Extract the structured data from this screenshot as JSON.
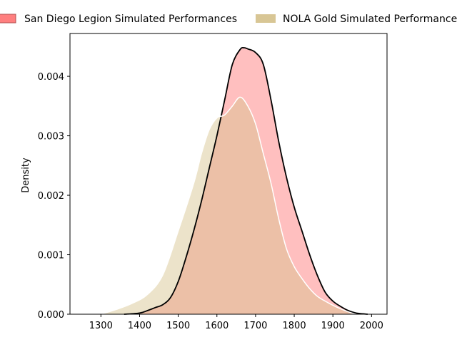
{
  "chart_data": {
    "type": "area",
    "title": "",
    "xlabel": "",
    "ylabel": "Density",
    "xlim": [
      1220,
      2040
    ],
    "ylim": [
      0,
      0.00472
    ],
    "x_ticks": [
      1300,
      1400,
      1500,
      1600,
      1700,
      1800,
      1900,
      2000
    ],
    "y_ticks": [
      0.0,
      0.001,
      0.002,
      0.003,
      0.004
    ],
    "y_tick_labels": [
      "0.000",
      "0.001",
      "0.002",
      "0.003",
      "0.004"
    ],
    "grid": false,
    "legend_position": "top",
    "series": [
      {
        "name": "San Diego Legion Simulated Performances",
        "fill": "#ff7f7f",
        "fill_opacity": 0.5,
        "stroke": "#000000",
        "points": [
          [
            1360,
            0.0
          ],
          [
            1400,
            2e-05
          ],
          [
            1420,
            6e-05
          ],
          [
            1440,
            0.00011
          ],
          [
            1460,
            0.00016
          ],
          [
            1480,
            0.00028
          ],
          [
            1500,
            0.00055
          ],
          [
            1520,
            0.00095
          ],
          [
            1540,
            0.0014
          ],
          [
            1560,
            0.0019
          ],
          [
            1580,
            0.00245
          ],
          [
            1600,
            0.003
          ],
          [
            1620,
            0.0036
          ],
          [
            1640,
            0.0042
          ],
          [
            1660,
            0.00445
          ],
          [
            1670,
            0.00448
          ],
          [
            1680,
            0.00446
          ],
          [
            1700,
            0.0044
          ],
          [
            1720,
            0.0042
          ],
          [
            1740,
            0.0036
          ],
          [
            1760,
            0.0029
          ],
          [
            1780,
            0.0023
          ],
          [
            1800,
            0.0018
          ],
          [
            1820,
            0.0014
          ],
          [
            1840,
            0.001
          ],
          [
            1860,
            0.00065
          ],
          [
            1880,
            0.00037
          ],
          [
            1900,
            0.00022
          ],
          [
            1920,
            0.00013
          ],
          [
            1940,
            6e-05
          ],
          [
            1960,
            2e-05
          ],
          [
            1990,
            0.0
          ]
        ]
      },
      {
        "name": "NOLA Gold Simulated Performances",
        "fill": "#d4c08a",
        "fill_opacity": 0.45,
        "stroke": "#ffffff",
        "points": [
          [
            1300,
            0.0
          ],
          [
            1340,
            8e-05
          ],
          [
            1380,
            0.00018
          ],
          [
            1420,
            0.00033
          ],
          [
            1460,
            0.00066
          ],
          [
            1500,
            0.0014
          ],
          [
            1540,
            0.0022
          ],
          [
            1560,
            0.0027
          ],
          [
            1580,
            0.0031
          ],
          [
            1600,
            0.0033
          ],
          [
            1620,
            0.00335
          ],
          [
            1640,
            0.0035
          ],
          [
            1660,
            0.00365
          ],
          [
            1680,
            0.0035
          ],
          [
            1700,
            0.0032
          ],
          [
            1720,
            0.0027
          ],
          [
            1740,
            0.0022
          ],
          [
            1760,
            0.0016
          ],
          [
            1780,
            0.0011
          ],
          [
            1800,
            0.0008
          ],
          [
            1820,
            0.0006
          ],
          [
            1840,
            0.00043
          ],
          [
            1860,
            0.0003
          ],
          [
            1880,
            0.00022
          ],
          [
            1900,
            0.00015
          ],
          [
            1920,
            9e-05
          ],
          [
            1940,
            4e-05
          ],
          [
            1960,
            0.0
          ]
        ]
      }
    ]
  }
}
